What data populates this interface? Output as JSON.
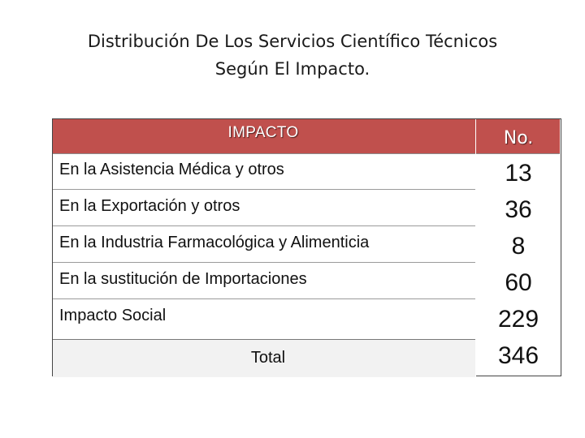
{
  "title": {
    "line1": "Distribución De Los Servicios Científico Técnicos",
    "line2": "Según El Impacto."
  },
  "table": {
    "header": {
      "impacto": "IMPACTO",
      "no": "No."
    },
    "rows": [
      {
        "label": "En la Asistencia Médica y otros",
        "value": "13"
      },
      {
        "label": "En la Exportación y  otros",
        "value": "36"
      },
      {
        "label": "En la Industria Farmacológica y Alimenticia",
        "value": "8"
      },
      {
        "label": "En la sustitución de Importaciones",
        "value": "60"
      },
      {
        "label": "Impacto Social",
        "value": "229"
      }
    ],
    "total": {
      "label": "Total",
      "value": "346"
    }
  },
  "colors": {
    "header_bg": "#c0504d",
    "total_bg": "#f2f2f2"
  }
}
